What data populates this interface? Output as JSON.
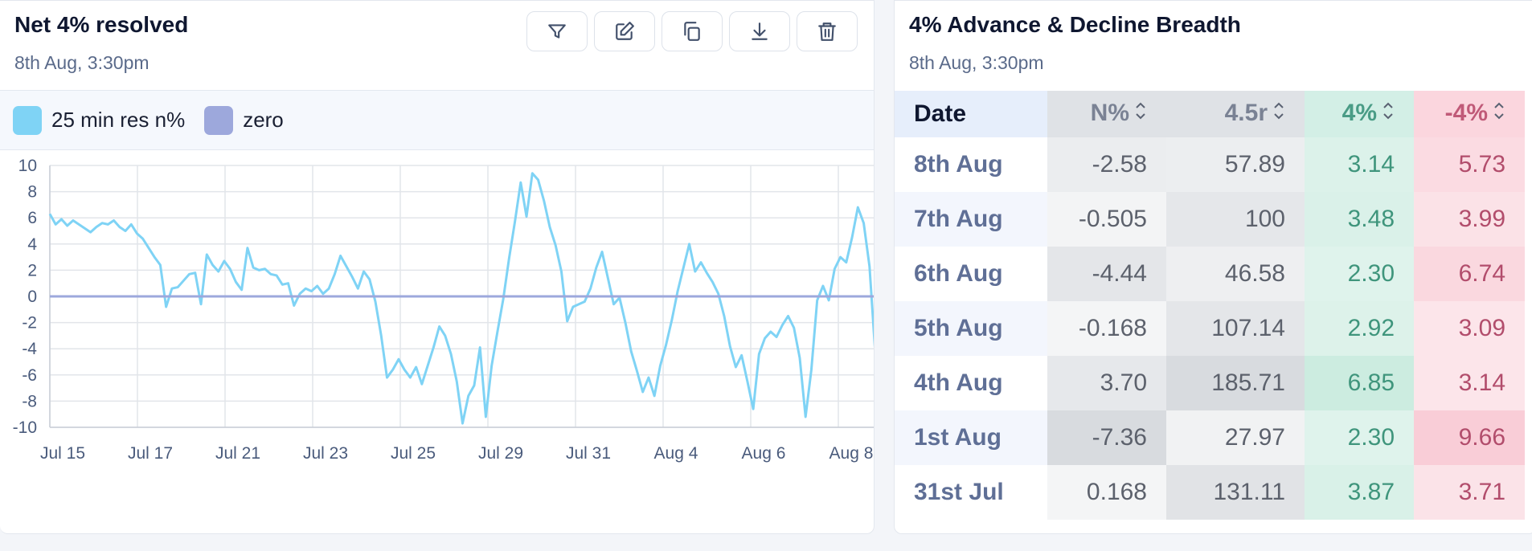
{
  "left_panel": {
    "title": "Net 4% resolved",
    "subtitle": "8th Aug, 3:30pm",
    "toolbar": [
      "filter-icon",
      "edit-icon",
      "copy-icon",
      "download-icon",
      "trash-icon"
    ],
    "legend": [
      {
        "label": "25 min res n%",
        "color": "#7fd3f5"
      },
      {
        "label": "zero",
        "color": "#9da8dc"
      }
    ]
  },
  "chart_data": {
    "type": "line",
    "ylim": [
      -10,
      10
    ],
    "yticks": [
      "10",
      "8",
      "6",
      "4",
      "2",
      "0",
      "-2",
      "-4",
      "-6",
      "-8",
      "-10"
    ],
    "xticks": [
      "Jul 15",
      "Jul 17",
      "Jul 21",
      "Jul 23",
      "Jul 25",
      "Jul 29",
      "Jul 31",
      "Aug 4",
      "Aug 6",
      "Aug 8"
    ],
    "series": [
      {
        "name": "25 min res n%",
        "color": "#7fd3f5",
        "values": [
          6.3,
          5.5,
          5.9,
          5.4,
          5.8,
          5.5,
          5.2,
          4.9,
          5.3,
          5.6,
          5.5,
          5.8,
          5.3,
          5.0,
          5.5,
          4.8,
          4.4,
          3.7,
          3.0,
          2.4,
          -0.8,
          0.6,
          0.7,
          1.2,
          1.7,
          1.8,
          -0.6,
          3.2,
          2.4,
          1.9,
          2.7,
          2.1,
          1.1,
          0.5,
          3.7,
          2.2,
          2.0,
          2.1,
          1.7,
          1.6,
          0.9,
          1.0,
          -0.7,
          0.2,
          0.6,
          0.4,
          0.8,
          0.2,
          0.6,
          1.7,
          3.1,
          2.3,
          1.5,
          0.6,
          1.9,
          1.3,
          -0.4,
          -3.0,
          -6.2,
          -5.6,
          -4.8,
          -5.6,
          -6.2,
          -5.4,
          -6.7,
          -5.3,
          -3.9,
          -2.3,
          -3.0,
          -4.4,
          -6.5,
          -9.7,
          -7.6,
          -6.8,
          -3.9,
          -9.2,
          -5.3,
          -2.7,
          -0.2,
          2.9,
          5.7,
          8.7,
          6.1,
          9.4,
          8.9,
          7.3,
          5.3,
          3.9,
          1.9,
          -1.9,
          -0.8,
          -0.6,
          -0.4,
          0.6,
          2.2,
          3.4,
          1.4,
          -0.6,
          -0.1,
          -2.0,
          -4.2,
          -5.7,
          -7.3,
          -6.2,
          -7.6,
          -5.3,
          -3.7,
          -1.8,
          0.4,
          2.2,
          4.0,
          1.9,
          2.6,
          1.8,
          1.1,
          0.2,
          -1.5,
          -3.8,
          -5.4,
          -4.5,
          -6.5,
          -8.6,
          -4.4,
          -3.2,
          -2.7,
          -3.1,
          -2.2,
          -1.5,
          -2.4,
          -4.7,
          -9.2,
          -5.6,
          -0.3,
          0.8,
          -0.3,
          2.1,
          3.0,
          2.6,
          4.5,
          6.8,
          5.6,
          2.3,
          -4.4
        ]
      },
      {
        "name": "zero",
        "color": "#9da8dc",
        "values": [
          0
        ]
      }
    ]
  },
  "right_panel": {
    "title": "4% Advance & Decline Breadth",
    "subtitle": "8th Aug, 3:30pm",
    "columns": [
      "Date",
      "N%",
      "4.5r",
      "4%",
      "-4%"
    ],
    "rows": [
      {
        "date": "8th Aug",
        "n": "-2.58",
        "r": "57.89",
        "adv": "3.14",
        "dec": "5.73"
      },
      {
        "date": "7th Aug",
        "n": "-0.505",
        "r": "100",
        "adv": "3.48",
        "dec": "3.99"
      },
      {
        "date": "6th Aug",
        "n": "-4.44",
        "r": "46.58",
        "adv": "2.30",
        "dec": "6.74"
      },
      {
        "date": "5th Aug",
        "n": "-0.168",
        "r": "107.14",
        "adv": "2.92",
        "dec": "3.09"
      },
      {
        "date": "4th Aug",
        "n": "3.70",
        "r": "185.71",
        "adv": "6.85",
        "dec": "3.14"
      },
      {
        "date": "1st Aug",
        "n": "-7.36",
        "r": "27.97",
        "adv": "2.30",
        "dec": "9.66"
      },
      {
        "date": "31st Jul",
        "n": "0.168",
        "r": "131.11",
        "adv": "3.87",
        "dec": "3.71"
      }
    ],
    "row_values": {
      "n": [
        -2.58,
        -0.505,
        -4.44,
        -0.168,
        3.7,
        -7.36,
        0.168
      ],
      "r": [
        57.89,
        100,
        46.58,
        107.14,
        185.71,
        27.97,
        131.11
      ],
      "adv": [
        3.14,
        3.48,
        2.3,
        2.92,
        6.85,
        2.3,
        3.87
      ],
      "dec": [
        5.73,
        3.99,
        6.74,
        3.09,
        3.14,
        9.66,
        3.71
      ]
    }
  }
}
